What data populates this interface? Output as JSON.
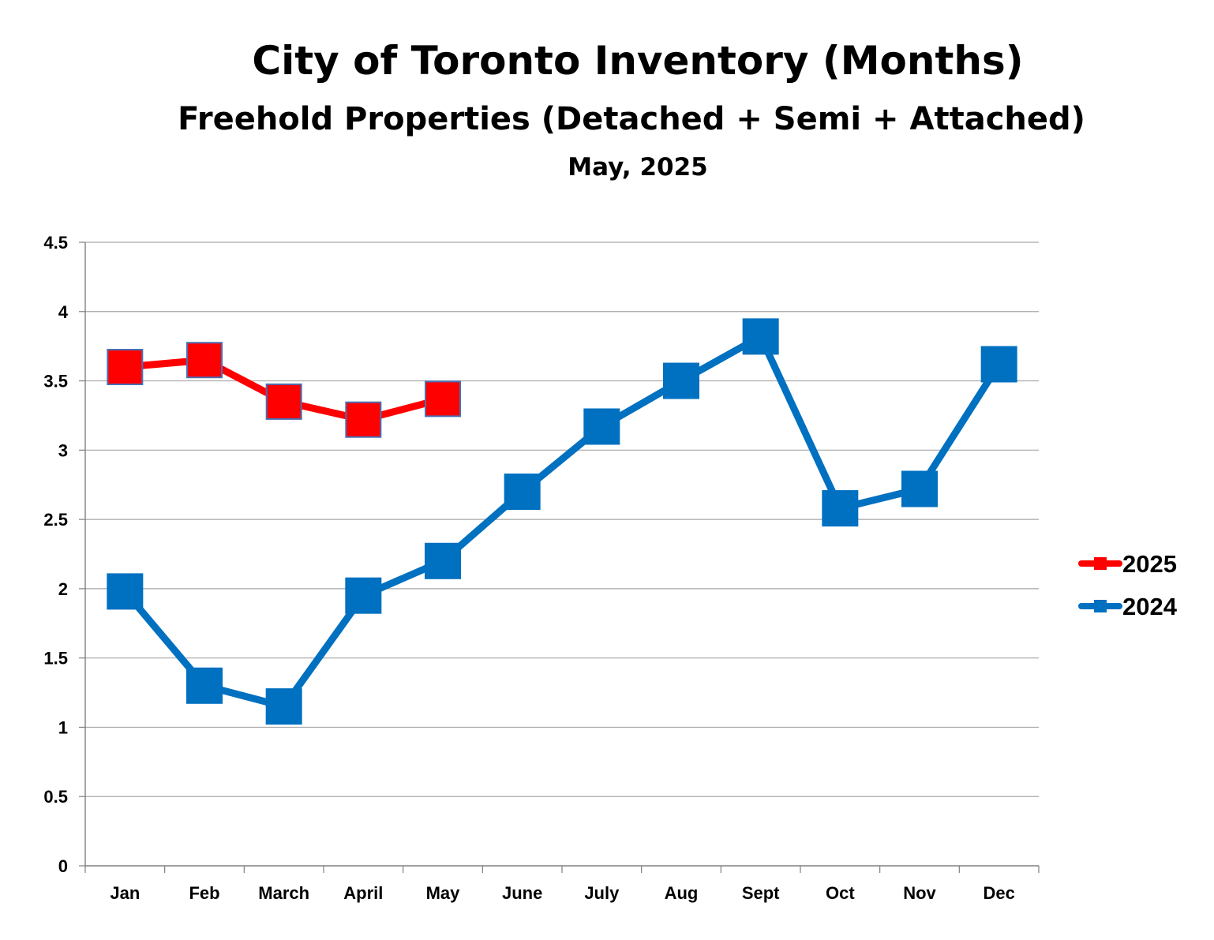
{
  "chart_data": {
    "type": "line",
    "title": "City of Toronto Inventory (Months)",
    "subtitle": "Freehold Properties (Detached + Semi + Attached)",
    "date_label": "May, 2025",
    "categories": [
      "Jan",
      "Feb",
      "March",
      "April",
      "May",
      "June",
      "July",
      "Aug",
      "Sept",
      "Oct",
      "Nov",
      "Dec"
    ],
    "ylim": [
      0,
      4.5
    ],
    "yticks": [
      "0",
      "0.5",
      "1",
      "1.5",
      "2",
      "2.5",
      "3",
      "3.5",
      "4",
      "4.5"
    ],
    "grid": true,
    "legend_position": "right",
    "series": [
      {
        "name": "2025",
        "color": "#ff0000",
        "marker": "square",
        "values": [
          3.6,
          3.65,
          3.35,
          3.22,
          3.37,
          null,
          null,
          null,
          null,
          null,
          null,
          null
        ]
      },
      {
        "name": "2024",
        "color": "#0070c0",
        "marker": "square",
        "values": [
          1.98,
          1.3,
          1.15,
          1.95,
          2.2,
          2.7,
          3.17,
          3.5,
          3.82,
          2.58,
          2.72,
          3.62
        ]
      }
    ]
  }
}
